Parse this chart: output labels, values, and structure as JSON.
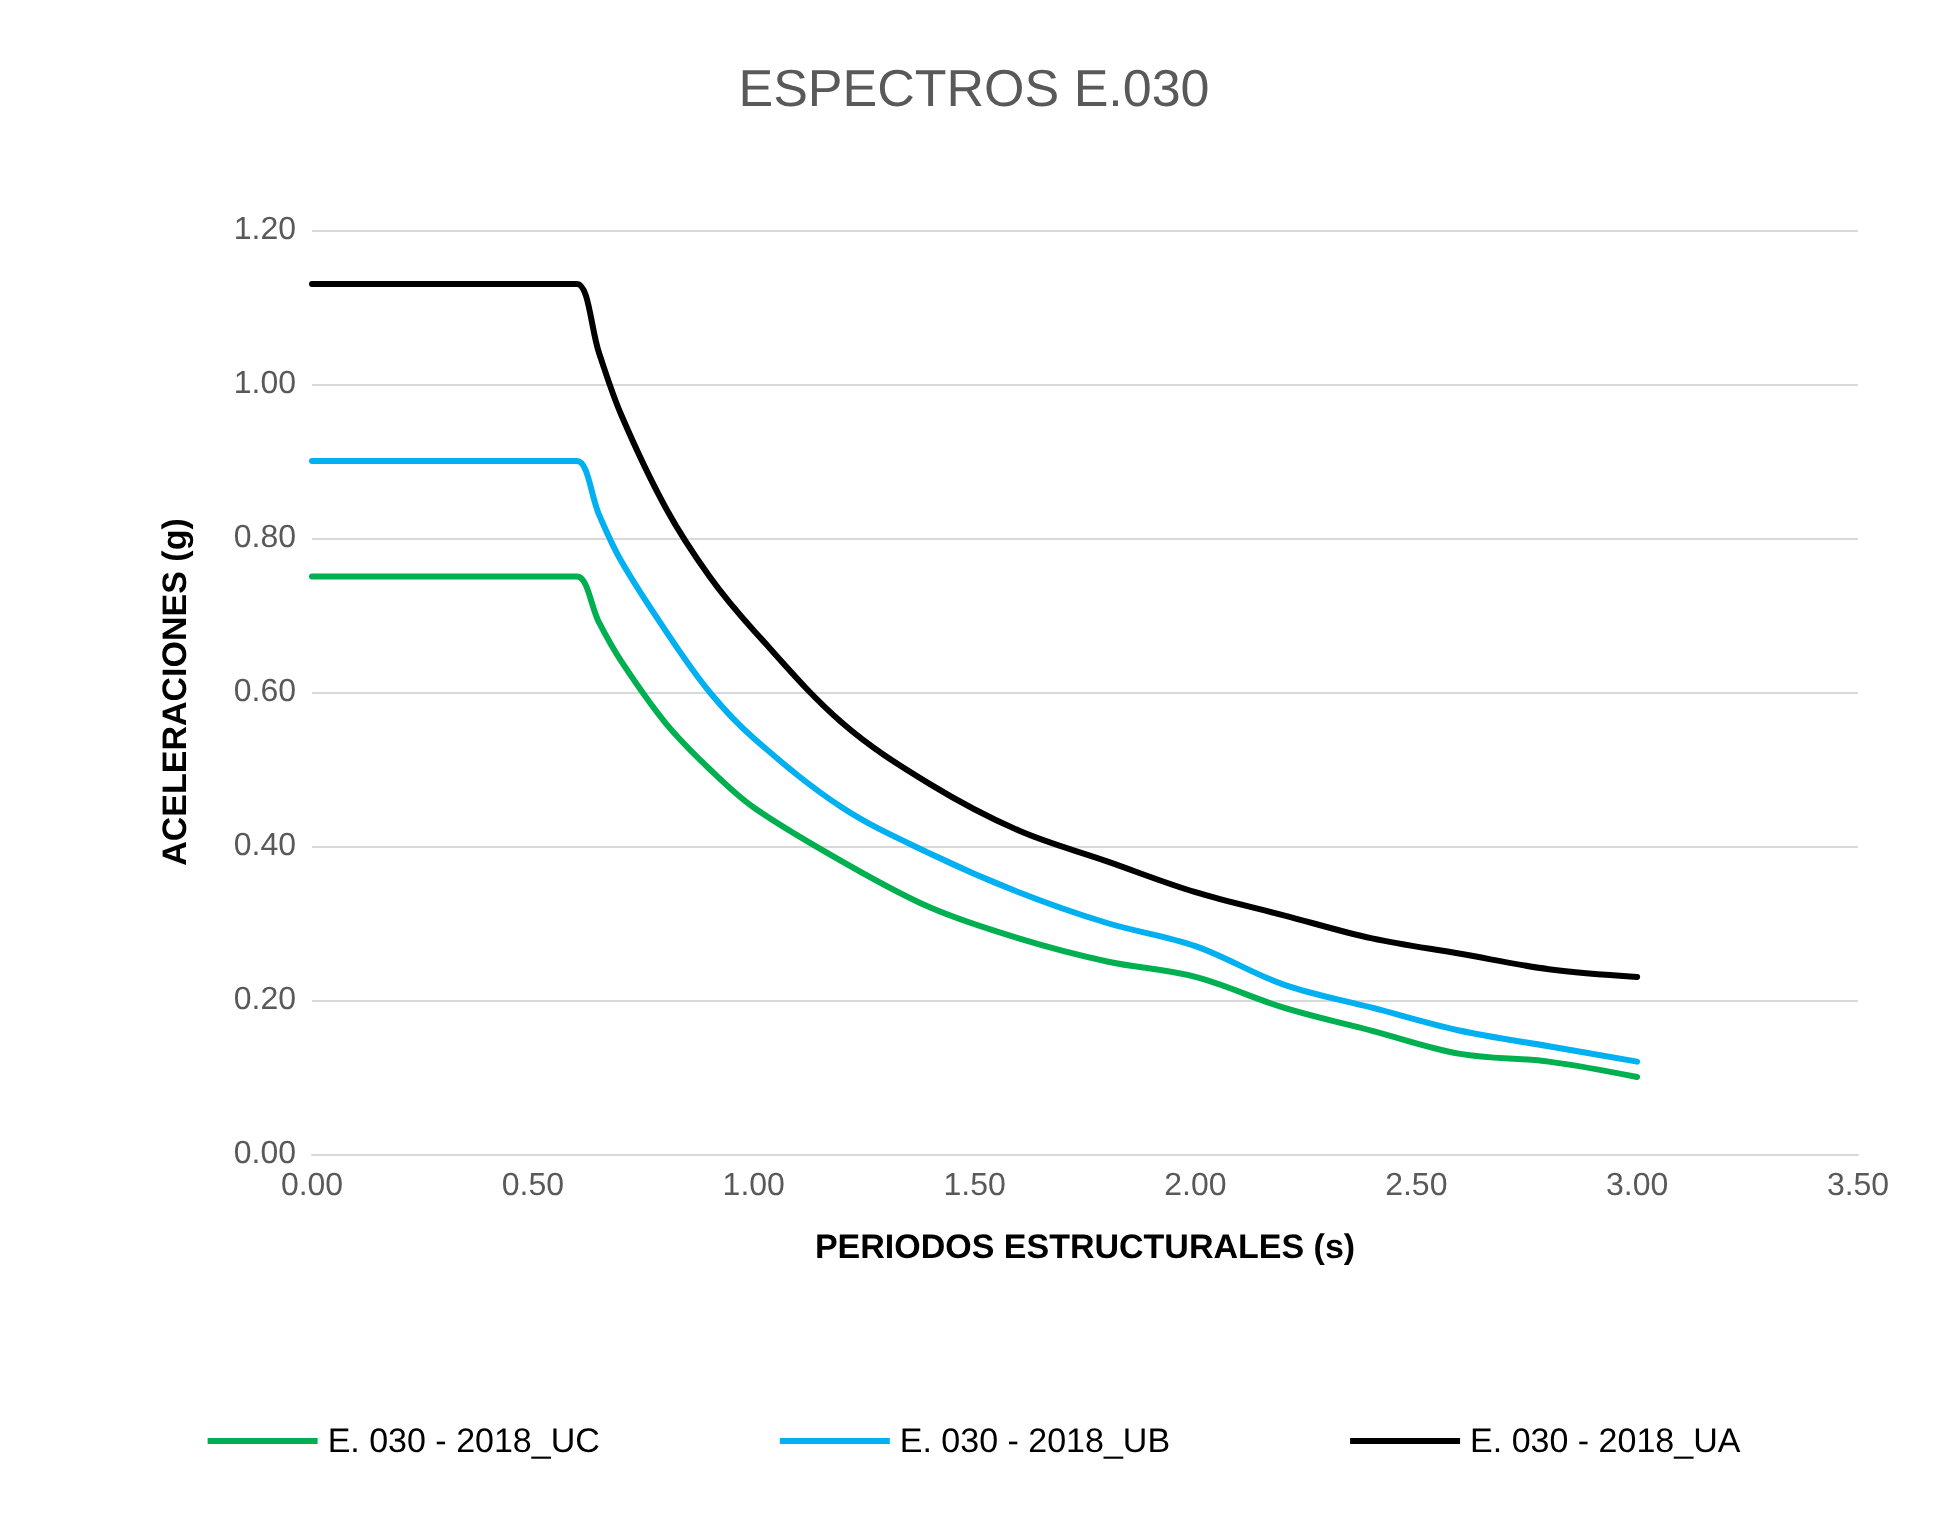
{
  "chart_data": {
    "type": "line",
    "title": "ESPECTROS E.030",
    "xlabel": "PERIODOS ESTRUCTURALES (s)",
    "ylabel": "ACELERACIONES (g)",
    "x": [
      0,
      0.55,
      0.6,
      0.65,
      0.7,
      0.8,
      0.9,
      1.0,
      1.2,
      1.4,
      1.6,
      1.8,
      2.0,
      2.2,
      2.4,
      2.6,
      2.8,
      3.0
    ],
    "series": [
      {
        "name": "E. 030 - 2018_UC",
        "color": "#00b050",
        "values": [
          0.75,
          0.75,
          0.75,
          0.69,
          0.64,
          0.56,
          0.5,
          0.45,
          0.38,
          0.32,
          0.28,
          0.25,
          0.23,
          0.19,
          0.16,
          0.13,
          0.12,
          0.1
        ]
      },
      {
        "name": "E. 030 - 2018_UB",
        "color": "#00b0f0",
        "values": [
          0.9,
          0.9,
          0.9,
          0.83,
          0.77,
          0.68,
          0.6,
          0.54,
          0.45,
          0.39,
          0.34,
          0.3,
          0.27,
          0.22,
          0.19,
          0.16,
          0.14,
          0.12
        ]
      },
      {
        "name": "E. 030 - 2018_UA",
        "color": "#000000",
        "values": [
          1.13,
          1.13,
          1.13,
          1.04,
          0.96,
          0.84,
          0.75,
          0.68,
          0.56,
          0.48,
          0.42,
          0.38,
          0.34,
          0.31,
          0.28,
          0.26,
          0.24,
          0.23
        ]
      }
    ],
    "xlim": [
      0,
      3.5
    ],
    "xticks": [
      {
        "value": 0,
        "label": "0.00"
      },
      {
        "value": 0.5,
        "label": "0.50"
      },
      {
        "value": 1,
        "label": "1.00"
      },
      {
        "value": 1.5,
        "label": "1.50"
      },
      {
        "value": 2,
        "label": "2.00"
      },
      {
        "value": 2.5,
        "label": "2.50"
      },
      {
        "value": 3,
        "label": "3.00"
      },
      {
        "value": 3.5,
        "label": "3.50"
      }
    ],
    "ylim": [
      0,
      1.2
    ],
    "yticks": [
      {
        "value": 0,
        "label": "0.00"
      },
      {
        "value": 0.2,
        "label": "0.20"
      },
      {
        "value": 0.4,
        "label": "0.40"
      },
      {
        "value": 0.6,
        "label": "0.60"
      },
      {
        "value": 0.8,
        "label": "0.80"
      },
      {
        "value": 1,
        "label": "1.00"
      },
      {
        "value": 1.2,
        "label": "1.20"
      }
    ],
    "grid": "y",
    "legend": "bottom",
    "marker": "none",
    "line_style": "solid"
  }
}
